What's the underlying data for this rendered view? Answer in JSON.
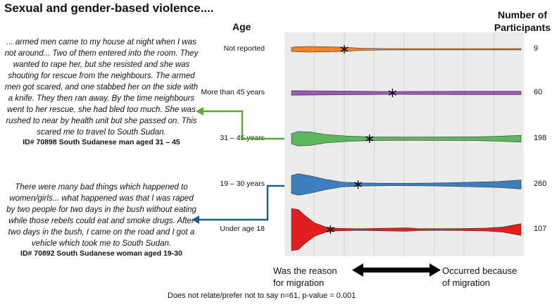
{
  "title": "Sexual and gender-based violence....",
  "age_header": "Age",
  "participants_header_line1": "Number of",
  "participants_header_line2": "Participants",
  "quote1": {
    "text": "... armed men came to my house at night when I was not around... Two of them entered into the room. They wanted to rape her, but she resisted and she was shouting for rescue from the neighbours. The armed men got scared, and one stabbed her on the side with a knife. They then ran away. By the time neighbours went to her rescue, she had bled too much. She was rushed to near by health unit but she passed on. This scared me to travel to South Sudan.",
    "id": "ID# 70898 South Sudanese man aged 31 – 45"
  },
  "quote2": {
    "text": "There were many bad things which happened to women/girls... what happened was that I was raped by two people for two days in the bush without eating while those rebels could eat and smoke drugs. After two days in the bush, I came on the road and I got a vehicle which took me to South Sudan.",
    "id": "ID# 70892 South Sudanese woman aged 19-30"
  },
  "axis": {
    "left_label_line1": "Was the reason",
    "left_label_line2": "for migration",
    "right_label_line1": "Occurred because",
    "right_label_line2": "of migration"
  },
  "footnote": "Does not relate/prefer not to say n=61, p-value = 0.001",
  "chart_data": {
    "type": "violin",
    "x_range": [
      0,
      1
    ],
    "x_meaning": "0 = Was the reason for migration, 1 = Occurred because of migration",
    "gridlines": "vertical",
    "series": [
      {
        "label": "Not reported",
        "n": 9,
        "color": "#f58220",
        "median": 0.23,
        "profile": [
          [
            0,
            0.3
          ],
          [
            0.02,
            0.4
          ],
          [
            0.08,
            0.45
          ],
          [
            0.15,
            0.4
          ],
          [
            0.23,
            0.32
          ],
          [
            0.3,
            0.18
          ],
          [
            0.4,
            0.1
          ],
          [
            0.6,
            0.09
          ],
          [
            0.8,
            0.09
          ],
          [
            1,
            0.1
          ]
        ]
      },
      {
        "label": "More than 45 years",
        "n": 60,
        "color": "#9b59b6",
        "median": 0.44,
        "profile": [
          [
            0,
            0.35
          ],
          [
            0.05,
            0.34
          ],
          [
            0.2,
            0.3
          ],
          [
            0.35,
            0.25
          ],
          [
            0.44,
            0.22
          ],
          [
            0.55,
            0.24
          ],
          [
            0.7,
            0.27
          ],
          [
            0.85,
            0.28
          ],
          [
            1,
            0.28
          ]
        ]
      },
      {
        "label": "31 – 45 years",
        "n": 198,
        "color": "#5cb85c",
        "median": 0.34,
        "profile": [
          [
            0,
            0.6
          ],
          [
            0.03,
            0.85
          ],
          [
            0.08,
            0.8
          ],
          [
            0.15,
            0.5
          ],
          [
            0.25,
            0.3
          ],
          [
            0.35,
            0.22
          ],
          [
            0.5,
            0.18
          ],
          [
            0.65,
            0.2
          ],
          [
            0.8,
            0.22
          ],
          [
            0.9,
            0.28
          ],
          [
            1,
            0.4
          ]
        ]
      },
      {
        "label": "19 – 30 years",
        "n": 260,
        "color": "#3b7fbf",
        "median": 0.29,
        "profile": [
          [
            0,
            0.8
          ],
          [
            0.03,
            0.95
          ],
          [
            0.08,
            0.78
          ],
          [
            0.15,
            0.45
          ],
          [
            0.22,
            0.22
          ],
          [
            0.3,
            0.14
          ],
          [
            0.45,
            0.1
          ],
          [
            0.6,
            0.12
          ],
          [
            0.75,
            0.18
          ],
          [
            0.9,
            0.26
          ],
          [
            1,
            0.4
          ]
        ]
      },
      {
        "label": "Under age 18",
        "n": 107,
        "color": "#e31e1e",
        "median": 0.17,
        "profile": [
          [
            0,
            1.0
          ],
          [
            0.03,
            0.95
          ],
          [
            0.06,
            0.65
          ],
          [
            0.1,
            0.32
          ],
          [
            0.15,
            0.12
          ],
          [
            0.2,
            0.06
          ],
          [
            0.3,
            0.04
          ],
          [
            0.4,
            0.06
          ],
          [
            0.5,
            0.08
          ],
          [
            0.55,
            0.05
          ],
          [
            0.65,
            0.04
          ],
          [
            0.75,
            0.05
          ],
          [
            0.85,
            0.07
          ],
          [
            0.92,
            0.12
          ],
          [
            0.97,
            0.22
          ],
          [
            1,
            0.28
          ]
        ]
      }
    ]
  }
}
